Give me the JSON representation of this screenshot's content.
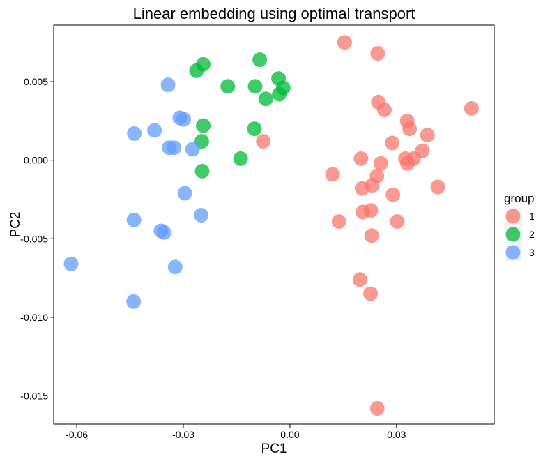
{
  "chart_data": {
    "type": "scatter",
    "title": "Linear embedding using optimal transport",
    "xlabel": "PC1",
    "ylabel": "PC2",
    "xlim": [
      -0.0665,
      0.0575
    ],
    "ylim": [
      -0.0168,
      0.0086
    ],
    "xticks": [
      -0.06,
      -0.03,
      0.0,
      0.03
    ],
    "xtick_labels": [
      "-0.06",
      "-0.03",
      "0.00",
      "0.03"
    ],
    "yticks": [
      0.005,
      0.0,
      -0.005,
      -0.01,
      -0.015
    ],
    "ytick_labels": [
      "0.005",
      "0.000",
      "-0.005",
      "-0.010",
      "-0.015"
    ],
    "grid": false,
    "legend": {
      "title": "group",
      "position": "right"
    },
    "series": [
      {
        "name": "1",
        "color": "#F8766D",
        "points": [
          [
            0.0154,
            0.0075
          ],
          [
            0.0247,
            0.0068
          ],
          [
            0.0511,
            0.0033
          ],
          [
            0.0249,
            0.0037
          ],
          [
            0.0266,
            0.0032
          ],
          [
            0.033,
            0.0025
          ],
          [
            0.0337,
            0.002
          ],
          [
            0.0387,
            0.0016
          ],
          [
            0.0288,
            0.0011
          ],
          [
            0.0373,
            0.0006
          ],
          [
            0.02,
            0.0001
          ],
          [
            0.0325,
            0.0001
          ],
          [
            0.0348,
            0.0001
          ],
          [
            0.0256,
            -0.0002
          ],
          [
            0.0331,
            -0.0002
          ],
          [
            0.012,
            -0.0009
          ],
          [
            0.0245,
            -0.001
          ],
          [
            0.0232,
            -0.0016
          ],
          [
            0.0203,
            -0.0018
          ],
          [
            0.0416,
            -0.0017
          ],
          [
            0.029,
            -0.0022
          ],
          [
            0.0205,
            -0.0033
          ],
          [
            0.0228,
            -0.0032
          ],
          [
            0.0138,
            -0.0039
          ],
          [
            0.0302,
            -0.0039
          ],
          [
            0.023,
            -0.0048
          ],
          [
            0.0197,
            -0.0076
          ],
          [
            0.0227,
            -0.0085
          ],
          [
            0.0246,
            -0.0158
          ],
          [
            -0.0075,
            0.0012
          ]
        ]
      },
      {
        "name": "2",
        "color": "#00BA38",
        "points": [
          [
            -0.0085,
            0.0064
          ],
          [
            -0.0244,
            0.0061
          ],
          [
            -0.0263,
            0.0057
          ],
          [
            -0.0175,
            0.0047
          ],
          [
            -0.0098,
            0.0047
          ],
          [
            -0.0032,
            0.0052
          ],
          [
            -0.0019,
            0.0046
          ],
          [
            -0.003,
            0.0042
          ],
          [
            -0.0068,
            0.0039
          ],
          [
            -0.0244,
            0.0022
          ],
          [
            -0.01,
            0.002
          ],
          [
            -0.0248,
            0.0012
          ],
          [
            -0.0139,
            0.0001
          ],
          [
            -0.0247,
            -0.0007
          ]
        ]
      },
      {
        "name": "3",
        "color": "#619CFF",
        "points": [
          [
            -0.0343,
            0.0048
          ],
          [
            -0.031,
            0.0027
          ],
          [
            -0.0299,
            0.0026
          ],
          [
            -0.0381,
            0.0019
          ],
          [
            -0.0438,
            0.0017
          ],
          [
            -0.034,
            0.0008
          ],
          [
            -0.0326,
            0.0008
          ],
          [
            -0.0274,
            0.0007
          ],
          [
            -0.0296,
            -0.0021
          ],
          [
            -0.025,
            -0.0035
          ],
          [
            -0.0439,
            -0.0038
          ],
          [
            -0.0363,
            -0.0045
          ],
          [
            -0.0354,
            -0.0046
          ],
          [
            -0.0323,
            -0.0068
          ],
          [
            -0.0616,
            -0.0066
          ],
          [
            -0.044,
            -0.009
          ]
        ]
      }
    ]
  }
}
